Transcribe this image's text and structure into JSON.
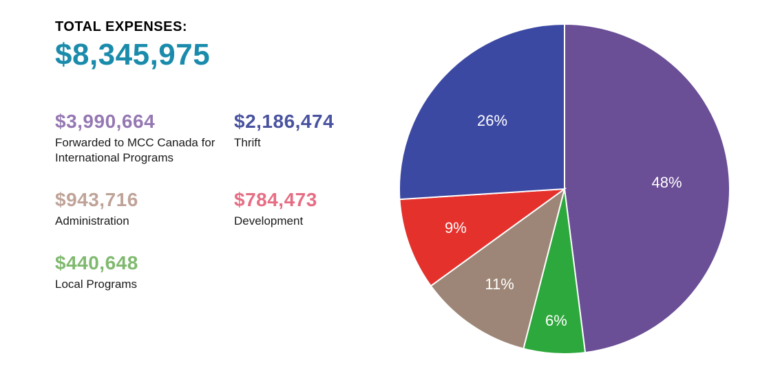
{
  "header": {
    "label": "TOTAL EXPENSES:",
    "value": "$8,345,975",
    "value_color": "#1a8bab",
    "label_color": "#000000"
  },
  "items": [
    {
      "value": "$3,990,664",
      "label": "Forwarded to MCC Canada for International Programs",
      "color": "#9578b3"
    },
    {
      "value": "$2,186,474",
      "label": "Thrift",
      "color": "#48529f"
    },
    {
      "value": "$943,716",
      "label": "Administration",
      "color": "#bfa398"
    },
    {
      "value": "$784,473",
      "label": "Development",
      "color": "#e66d83"
    },
    {
      "value": "$440,648",
      "label": "Local Programs",
      "color": "#7fb96f"
    }
  ],
  "pie": {
    "type": "pie",
    "background_color": "#ffffff",
    "radius": 240,
    "stroke": "#ffffff",
    "stroke_width": 2,
    "label_color": "#ffffff",
    "label_fontsize": 22,
    "slices": [
      {
        "percent": 48,
        "label": "48%",
        "color": "#6a4e96",
        "label_r": 0.62
      },
      {
        "percent": 6,
        "label": "6%",
        "color": "#2da83c",
        "label_r": 0.8
      },
      {
        "percent": 11,
        "label": "11%",
        "color": "#9d8677",
        "label_r": 0.7
      },
      {
        "percent": 9,
        "label": "9%",
        "color": "#e5312c",
        "label_r": 0.7
      },
      {
        "percent": 26,
        "label": "26%",
        "color": "#3c49a3",
        "label_r": 0.6
      }
    ],
    "start_angle_deg": -90
  }
}
